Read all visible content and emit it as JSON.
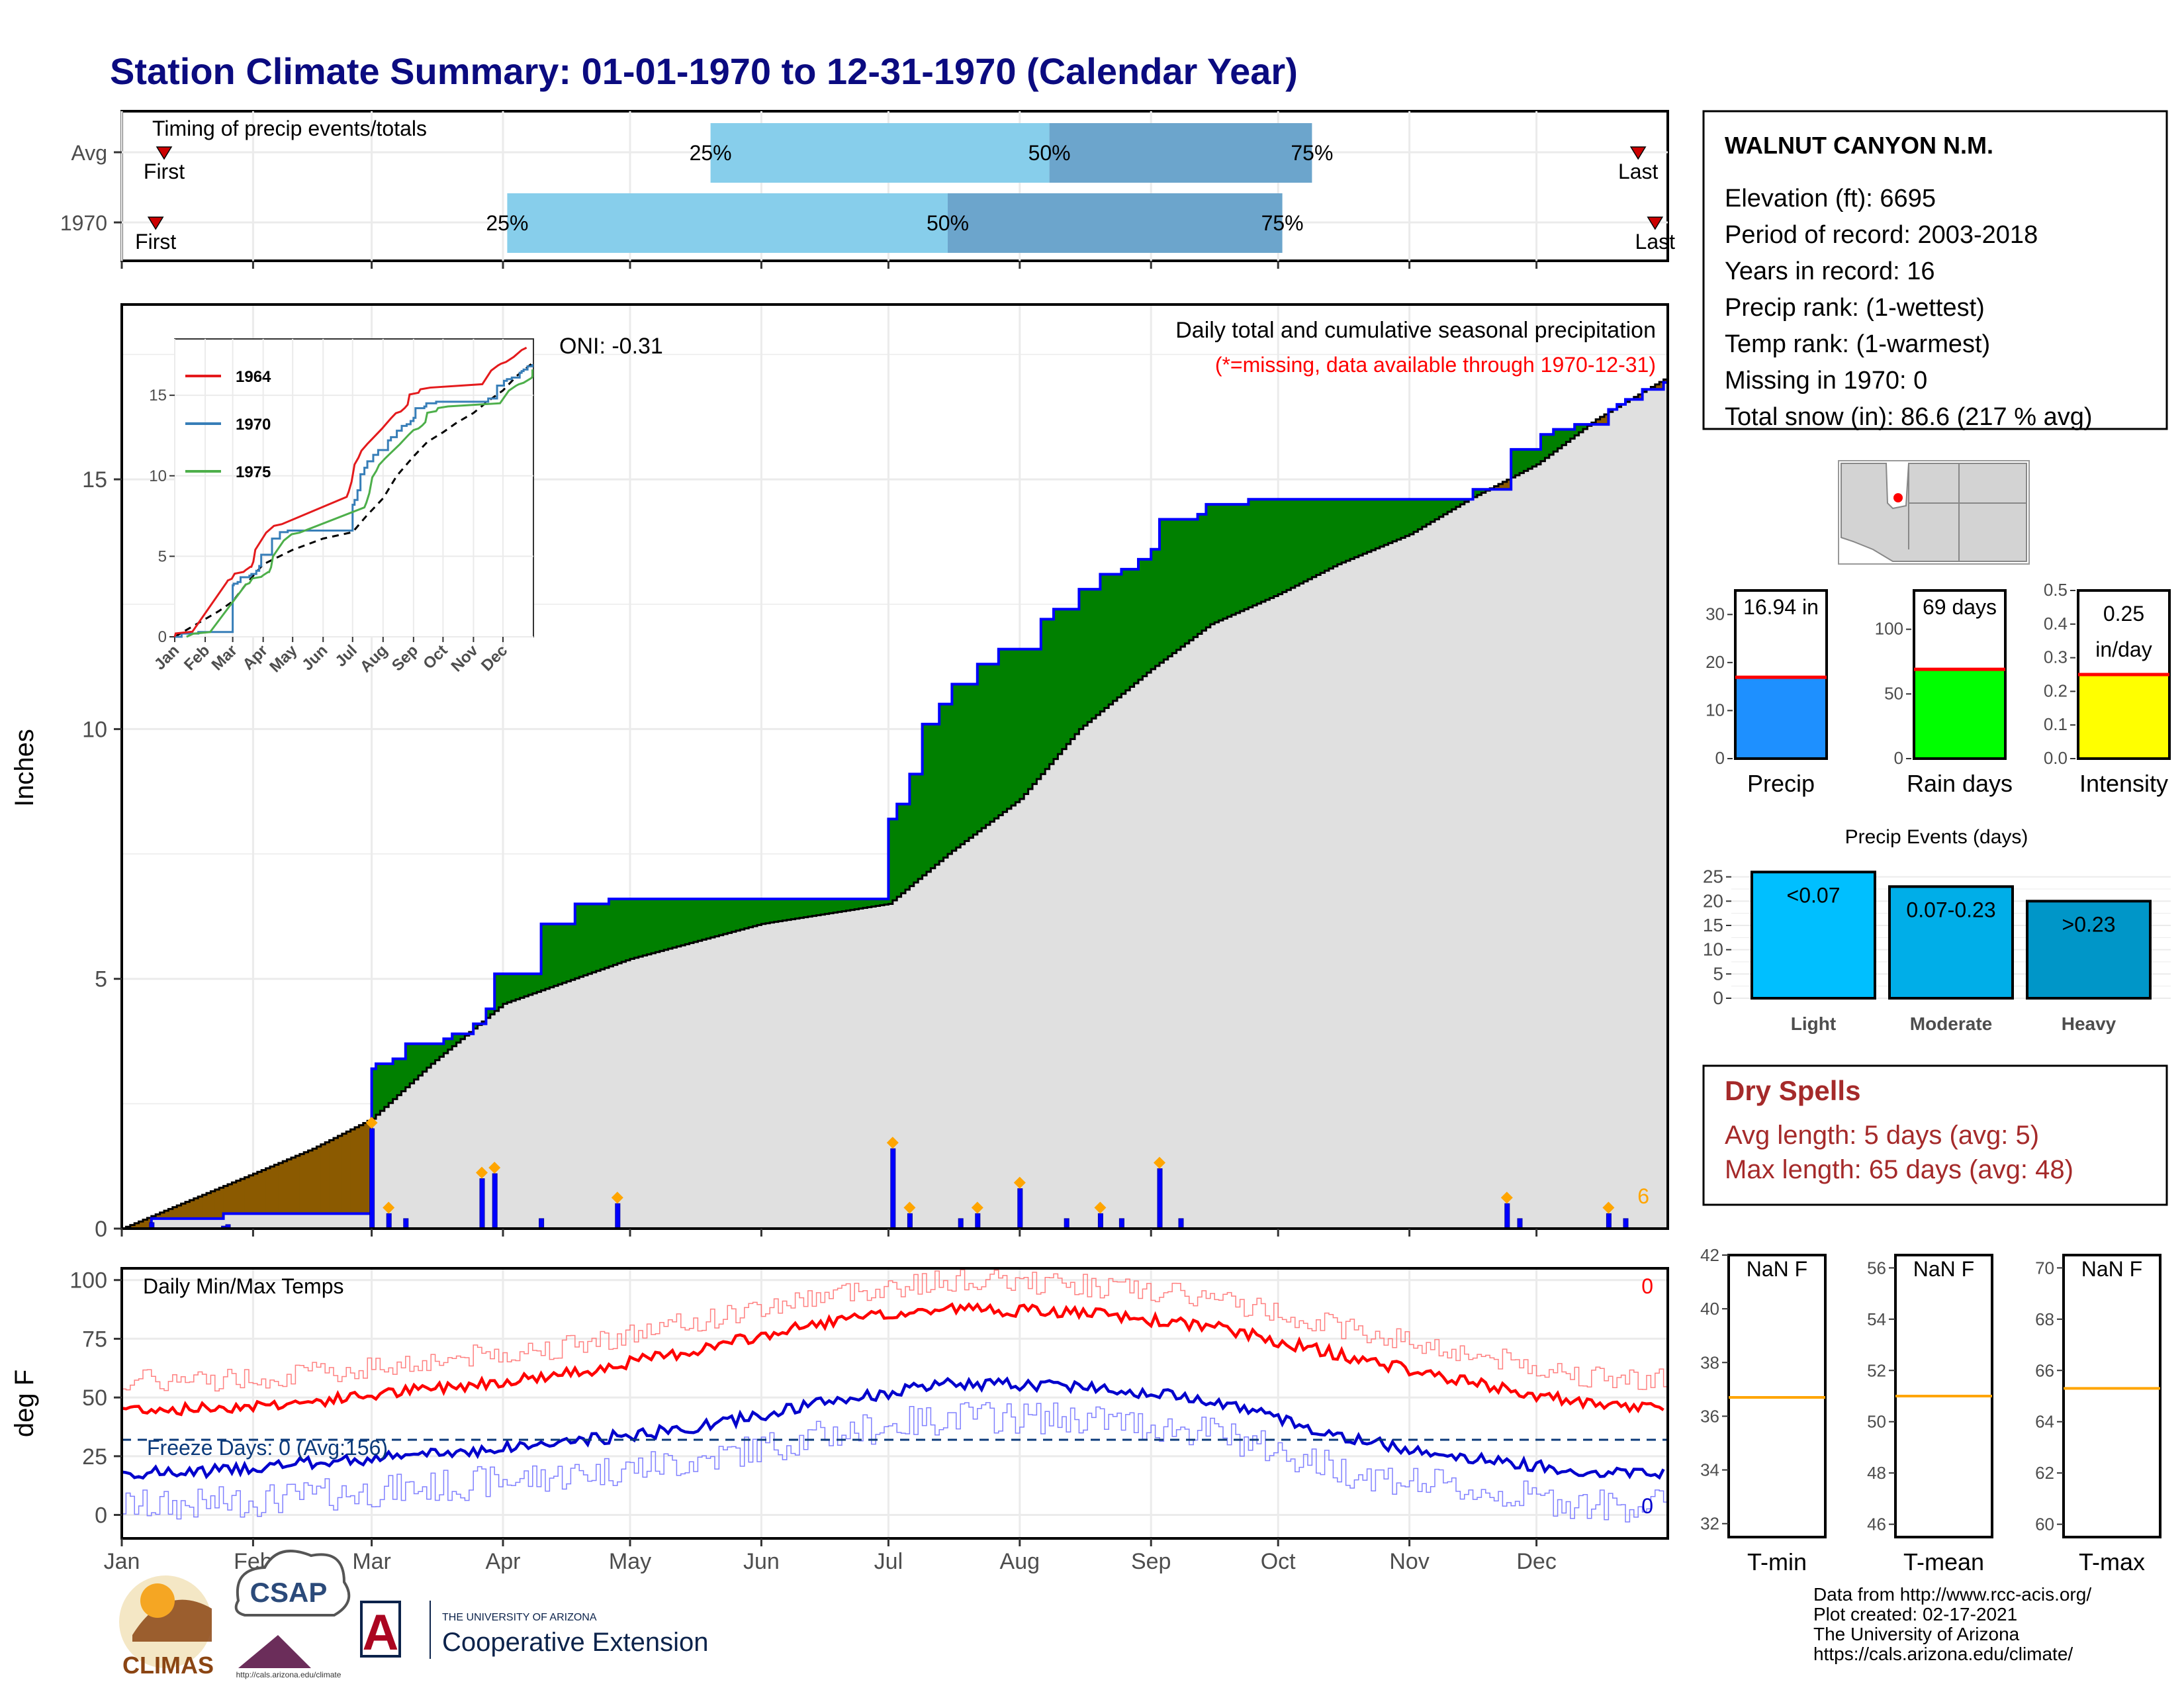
{
  "page": {
    "title": "Station Climate Summary: 01-01-1970 to 12-31-1970 (Calendar Year)"
  },
  "colors": {
    "brown": "#8B5A00",
    "green": "#008000",
    "grey_fill": "#E0E0E0",
    "blue_line": "#0000FF",
    "orange_marker": "#FFA500",
    "light_blue_bar": "#87CEEB",
    "mid_blue_bar": "#6CA5CC",
    "precip_bar": "#1E90FF",
    "rain_days_bar": "#00FF00",
    "intensity_bar": "#FFFF00",
    "event_light": "#00BFFF",
    "event_moderate": "#00AEE8",
    "event_heavy": "#0096C8",
    "dry_spell_text": "#A52A2A",
    "tmax_line": "#FF0000",
    "tmin_line": "#0000CC",
    "avg_line": "#FF0000"
  },
  "timing": {
    "label": "Timing of precip events/totals",
    "rows": [
      {
        "name": "Avg",
        "first_date": "01-11",
        "last_date": "12-25",
        "p25": 140,
        "p50": 220,
        "p75": 282,
        "first_label": "First",
        "last_label": "Last",
        "p25_label": "25%",
        "p50_label": "50%",
        "p75_label": "75%"
      },
      {
        "name": "1970",
        "first_date": "01-09",
        "last_date": "12-29",
        "p25": 92,
        "p50": 196,
        "p75": 275,
        "first_label": "First",
        "last_label": "Last",
        "p25_label": "25%",
        "p50_label": "50%",
        "p75_label": "75%"
      }
    ]
  },
  "station_info": {
    "name": "WALNUT CANYON N.M.",
    "lines": [
      "Elevation (ft): 6695",
      "Period of record: 2003-2018",
      "Years in record: 16",
      "Precip rank:  (1-wettest)",
      "Temp rank:  (1-warmest)",
      "Missing in 1970: 0",
      "Total snow (in): 86.6 (217 % avg)"
    ]
  },
  "precip_panel": {
    "ylabel": "Inches",
    "oni": "ONI: -0.31",
    "note": "Daily total and cumulative seasonal precipitation",
    "missing_note": "(*=missing, data available through 1970-12-31)",
    "corner_count": "6",
    "y_ticks": [
      "0",
      "5",
      "10",
      "15"
    ]
  },
  "inset": {
    "y_ticks": [
      "0",
      "5",
      "10",
      "15"
    ],
    "x_ticks": [
      "Jan",
      "Feb",
      "Mar",
      "Apr",
      "May",
      "Jun",
      "Jul",
      "Aug",
      "Sep",
      "Oct",
      "Nov",
      "Dec"
    ],
    "legend": [
      {
        "name": "1964",
        "color": "#E41A1C"
      },
      {
        "name": "1970",
        "color": "#377EB8"
      },
      {
        "name": "1975",
        "color": "#4DAF4A"
      }
    ]
  },
  "mini_bars": [
    {
      "title": "Precip",
      "label": "16.94 in",
      "ticks": [
        "0",
        "10",
        "20",
        "30"
      ],
      "ymax": 35,
      "value": 16.94,
      "color": "#1E90FF"
    },
    {
      "title": "Rain days",
      "label": "69 days",
      "ticks": [
        "0",
        "50",
        "100"
      ],
      "ymax": 130,
      "value": 69,
      "color": "#00FF00"
    },
    {
      "title": "Intensity",
      "label": "0.25 in/day",
      "label_line1": "0.25",
      "label_line2": "in/day",
      "ticks": [
        "0.0",
        "0.1",
        "0.2",
        "0.3",
        "0.4",
        "0.5"
      ],
      "ymax": 0.5,
      "value": 0.25,
      "color": "#FFFF00"
    }
  ],
  "events": {
    "title": "Precip Events (days)",
    "ticks": [
      "0",
      "5",
      "10",
      "15",
      "20",
      "25"
    ],
    "bars": [
      {
        "category": "Light",
        "range": "<0.07",
        "value": 26
      },
      {
        "category": "Moderate",
        "range": "0.07-0.23",
        "value": 23
      },
      {
        "category": "Heavy",
        "range": ">0.23",
        "value": 20
      }
    ]
  },
  "dry_spells": {
    "title": "Dry Spells",
    "avg": "Avg length: 5 days (avg: 5)",
    "max": "Max length: 65 days (avg: 48)"
  },
  "temp_panel": {
    "ylabel": "deg F",
    "title": "Daily Min/Max Temps",
    "freeze": "Freeze Days: 0 (Avg:156)",
    "count_high": "0",
    "count_low": "0",
    "y_ticks": [
      "0",
      "25",
      "50",
      "75",
      "100"
    ],
    "months": [
      "Jan",
      "Feb",
      "Mar",
      "Apr",
      "May",
      "Jun",
      "Jul",
      "Aug",
      "Sep",
      "Oct",
      "Nov",
      "Dec"
    ]
  },
  "temp_boxes": [
    {
      "title": "T-min",
      "label": "NaN F",
      "ticks": [
        "32",
        "34",
        "36",
        "38",
        "40",
        "42"
      ],
      "ymin": 31.5,
      "ymax": 42,
      "avg": 36.7
    },
    {
      "title": "T-mean",
      "label": "NaN F",
      "ticks": [
        "46",
        "48",
        "50",
        "52",
        "54",
        "56"
      ],
      "ymin": 45.5,
      "ymax": 56.5,
      "avg": 51.0
    },
    {
      "title": "T-max",
      "label": "NaN F",
      "ticks": [
        "60",
        "62",
        "64",
        "66",
        "68",
        "70"
      ],
      "ymin": 59.5,
      "ymax": 70.5,
      "avg": 65.3
    }
  ],
  "footer": {
    "lines": [
      "Data from http://www.rcc-acis.org/",
      "Plot created: 02-17-2021",
      "The University of Arizona",
      "https://cals.arizona.edu/climate/"
    ]
  },
  "logos": {
    "climas": "CLIMAS",
    "csap": "CSAP",
    "csap_url": "http://cals.arizona.edu/climate",
    "ua_small": "THE UNIVERSITY OF ARIZONA",
    "ua_big": "Cooperative Extension"
  },
  "chart_data": {
    "type": "area",
    "title": "Daily total and cumulative seasonal precipitation",
    "ylabel": "Inches",
    "ylim": [
      0,
      18.5
    ],
    "xlim_dates": [
      "1970-01-01",
      "1970-12-31"
    ],
    "cumulative_1970": {
      "dates": [
        "01-01",
        "01-08",
        "01-25",
        "03-01",
        "03-02",
        "03-06",
        "03-09",
        "03-18",
        "03-20",
        "03-25",
        "03-26",
        "03-28",
        "03-30",
        "04-10",
        "04-18",
        "04-26",
        "07-01",
        "07-03",
        "07-06",
        "07-09",
        "07-13",
        "07-16",
        "07-22",
        "07-27",
        "08-06",
        "08-09",
        "08-15",
        "08-20",
        "08-25",
        "08-29",
        "09-01",
        "09-03",
        "09-12",
        "09-14",
        "09-24",
        "11-16",
        "11-25",
        "12-02",
        "12-05",
        "12-10",
        "12-18",
        "12-20",
        "12-22",
        "12-26",
        "12-31"
      ],
      "values": [
        0.0,
        0.2,
        0.3,
        3.2,
        3.3,
        3.4,
        3.7,
        3.8,
        3.9,
        4.1,
        4.1,
        4.4,
        5.1,
        6.1,
        6.5,
        6.6,
        8.2,
        8.5,
        9.1,
        10.1,
        10.5,
        10.9,
        11.3,
        11.6,
        12.2,
        12.4,
        12.8,
        13.1,
        13.2,
        13.4,
        13.6,
        14.2,
        14.3,
        14.5,
        14.6,
        14.8,
        15.6,
        15.9,
        16.0,
        16.1,
        16.4,
        16.5,
        16.6,
        16.8,
        16.94
      ]
    },
    "cumulative_avg": {
      "dates": [
        "01-01",
        "01-15",
        "02-01",
        "02-15",
        "03-01",
        "03-15",
        "04-01",
        "05-01",
        "06-01",
        "07-01",
        "07-15",
        "08-01",
        "08-15",
        "09-01",
        "09-15",
        "10-01",
        "10-15",
        "11-01",
        "11-15",
        "12-01",
        "12-15",
        "12-31"
      ],
      "values": [
        0.0,
        0.5,
        1.1,
        1.6,
        2.2,
        3.3,
        4.5,
        5.4,
        6.1,
        6.5,
        7.5,
        8.6,
        10.0,
        11.2,
        12.1,
        12.7,
        13.3,
        13.9,
        14.6,
        15.3,
        16.2,
        17.0
      ]
    },
    "daily_precip": {
      "dates": [
        "01-08",
        "01-25",
        "01-26",
        "03-01",
        "03-05",
        "03-09",
        "03-27",
        "03-30",
        "04-10",
        "04-28",
        "07-02",
        "07-06",
        "07-18",
        "07-22",
        "08-01",
        "08-12",
        "08-20",
        "08-25",
        "09-03",
        "09-08",
        "11-24",
        "11-27",
        "12-18",
        "12-22"
      ],
      "values": [
        0.12,
        0.05,
        0.08,
        2.0,
        0.3,
        0.2,
        1.0,
        1.1,
        0.2,
        0.5,
        1.6,
        0.3,
        0.2,
        0.3,
        0.8,
        0.2,
        0.3,
        0.2,
        1.2,
        0.2,
        0.5,
        0.2,
        0.3,
        0.2
      ]
    },
    "temp_tmax_avg": {
      "months": [
        1,
        2,
        3,
        4,
        5,
        6,
        7,
        8,
        9,
        10,
        11,
        12
      ],
      "values": [
        45,
        48,
        54,
        60,
        70,
        82,
        88,
        86,
        80,
        68,
        56,
        46
      ]
    },
    "temp_tmin_avg": {
      "months": [
        1,
        2,
        3,
        4,
        5,
        6,
        7,
        8,
        9,
        10,
        11,
        12
      ],
      "values": [
        18,
        22,
        26,
        31,
        37,
        48,
        56,
        55,
        49,
        33,
        24,
        18
      ]
    },
    "freeze_threshold": 32,
    "temp_ylim": [
      -10,
      105
    ]
  }
}
